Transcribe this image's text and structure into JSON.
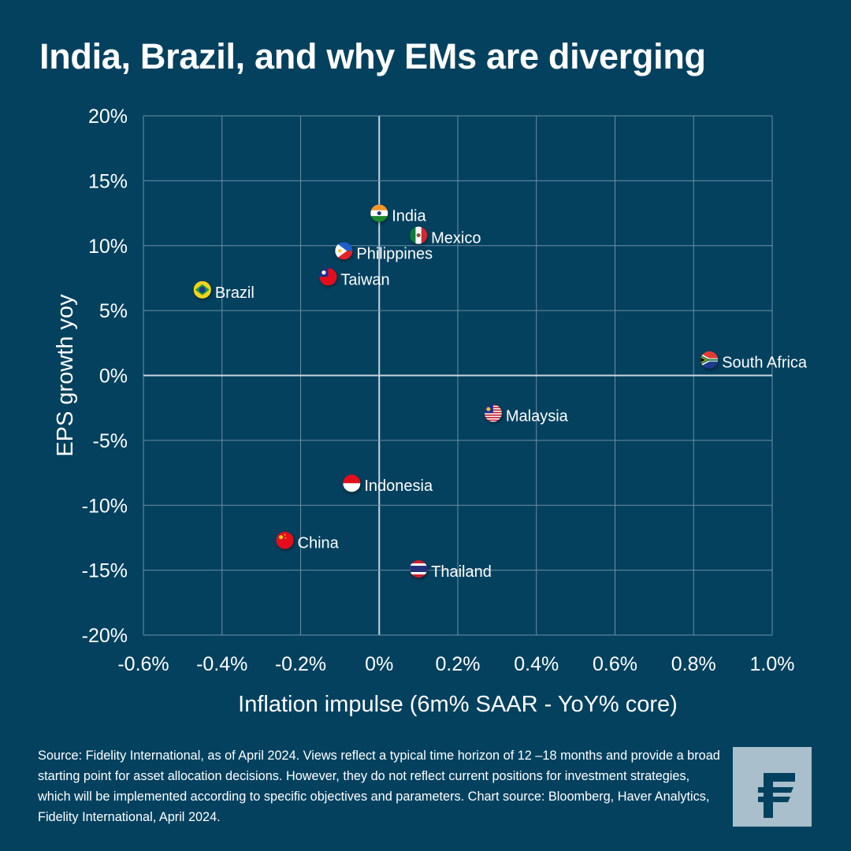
{
  "title": "India, Brazil, and why EMs are diverging",
  "chart_data": {
    "type": "scatter",
    "title": "India, Brazil, and why EMs are diverging",
    "xlabel": "Inflation impulse (6m% SAAR - YoY% core)",
    "ylabel": "EPS growth yoy",
    "xlim": [
      -0.6,
      1.0
    ],
    "ylim": [
      -20,
      20
    ],
    "x_ticks": [
      "-0.6%",
      "-0.4%",
      "-0.2%",
      "0%",
      "0.2%",
      "0.4%",
      "0.6%",
      "0.8%",
      "1.0%"
    ],
    "y_ticks": [
      "20%",
      "15%",
      "10%",
      "5%",
      "0%",
      "-5%",
      "-10%",
      "-15%",
      "-20%"
    ],
    "grid": true,
    "marker": "country flag",
    "points": [
      {
        "label": "India",
        "x": 0.0,
        "y": 12.5,
        "flag": "india"
      },
      {
        "label": "Mexico",
        "x": 0.1,
        "y": 10.8,
        "flag": "mexico"
      },
      {
        "label": "Philippines",
        "x": -0.09,
        "y": 9.6,
        "flag": "philippines"
      },
      {
        "label": "Taiwan",
        "x": -0.13,
        "y": 7.6,
        "flag": "taiwan"
      },
      {
        "label": "Brazil",
        "x": -0.45,
        "y": 6.6,
        "flag": "brazil"
      },
      {
        "label": "South Africa",
        "x": 0.84,
        "y": 1.2,
        "flag": "south-africa"
      },
      {
        "label": "Malaysia",
        "x": 0.29,
        "y": -2.9,
        "flag": "malaysia"
      },
      {
        "label": "Indonesia",
        "x": -0.07,
        "y": -8.3,
        "flag": "indonesia"
      },
      {
        "label": "China",
        "x": -0.24,
        "y": -12.7,
        "flag": "china"
      },
      {
        "label": "Thailand",
        "x": 0.1,
        "y": -14.9,
        "flag": "thailand"
      }
    ]
  },
  "source": "Source: Fidelity International, as of April 2024. Views reflect a typical time horizon of 12 –18 months and provide a broad starting point for asset allocation decisions. However, they do not reflect current positions for investment strategies, which will be implemented according to specific objectives and parameters. Chart source: Bloomberg, Haver Analytics, Fidelity International, April 2024.",
  "logo": "Fidelity",
  "colors": {
    "background": "#03415f",
    "grid": "#6f8ea3",
    "logo_bg": "#a9bfcc",
    "logo_fg": "#03415f"
  }
}
